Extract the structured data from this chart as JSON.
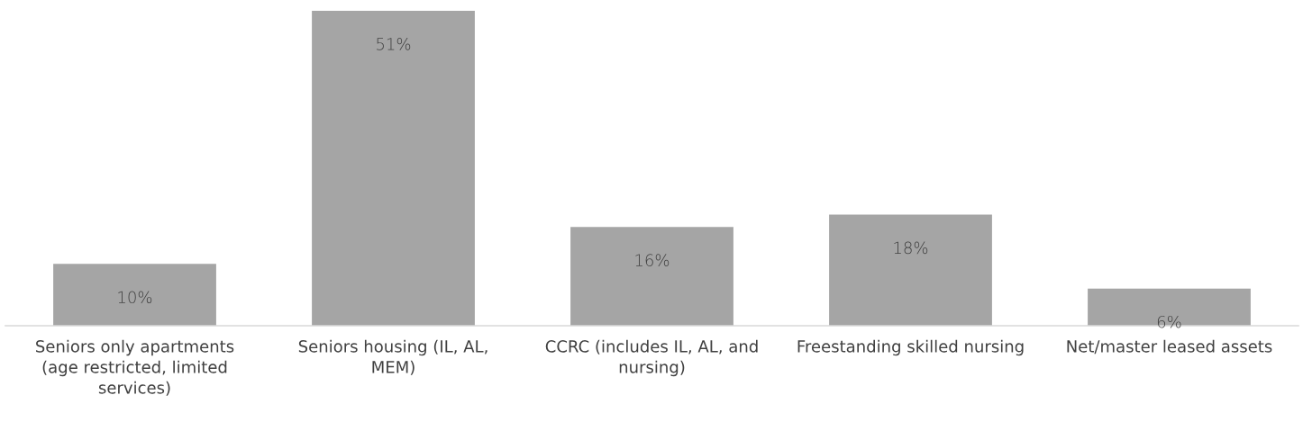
{
  "chart_data": {
    "type": "bar",
    "categories": [
      "Seniors only apartments (age restricted, limited services)",
      "Seniors housing (IL, AL, MEM)",
      "CCRC (includes IL, AL, and nursing)",
      "Freestanding skilled nursing",
      "Net/master leased assets"
    ],
    "values": [
      10,
      51,
      16,
      18,
      6
    ],
    "value_labels": [
      "10%",
      "51%",
      "16%",
      "18%",
      "6%"
    ],
    "color": "#a5a5a5",
    "legend": false
  }
}
